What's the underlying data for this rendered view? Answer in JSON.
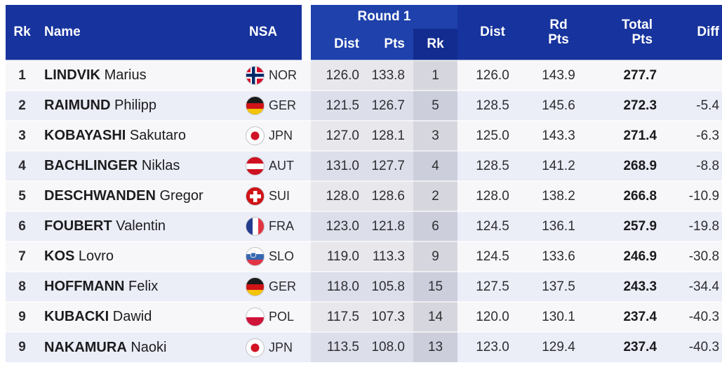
{
  "colors": {
    "header_navy": "#17339d",
    "round1_blue": "#1e41ab",
    "round1_rk_navy": "#122c90",
    "row_odd": "#f7f7f9",
    "row_even": "#ebedf7",
    "band_tint": "rgba(40,45,75,0.075)",
    "band_dark_tint": "rgba(40,45,75,0.155)"
  },
  "table": {
    "header": {
      "rk": "Rk",
      "name": "Name",
      "nsa": "NSA",
      "round1": {
        "title": "Round 1",
        "dist": "Dist",
        "pts": "Pts",
        "rk": "Rk"
      },
      "dist": "Dist",
      "rd_pts": "Rd\nPts",
      "total_pts": "Total\nPts",
      "diff": "Diff"
    },
    "rows": [
      {
        "rank": "1",
        "surname": "LINDVIK",
        "given": "Marius",
        "nsa": "NOR",
        "flag": "nor",
        "r1_dist": "126.0",
        "r1_pts": "133.8",
        "r1_rk": "1",
        "dist": "126.0",
        "rd_pts": "143.9",
        "total": "277.7",
        "diff": ""
      },
      {
        "rank": "2",
        "surname": "RAIMUND",
        "given": "Philipp",
        "nsa": "GER",
        "flag": "ger",
        "r1_dist": "121.5",
        "r1_pts": "126.7",
        "r1_rk": "5",
        "dist": "128.5",
        "rd_pts": "145.6",
        "total": "272.3",
        "diff": "-5.4"
      },
      {
        "rank": "3",
        "surname": "KOBAYASHI",
        "given": "Sakutaro",
        "nsa": "JPN",
        "flag": "jpn",
        "r1_dist": "127.0",
        "r1_pts": "128.1",
        "r1_rk": "3",
        "dist": "125.0",
        "rd_pts": "143.3",
        "total": "271.4",
        "diff": "-6.3"
      },
      {
        "rank": "4",
        "surname": "BACHLINGER",
        "given": "Niklas",
        "nsa": "AUT",
        "flag": "aut",
        "r1_dist": "131.0",
        "r1_pts": "127.7",
        "r1_rk": "4",
        "dist": "128.5",
        "rd_pts": "141.2",
        "total": "268.9",
        "diff": "-8.8"
      },
      {
        "rank": "5",
        "surname": "DESCHWANDEN",
        "given": "Gregor",
        "nsa": "SUI",
        "flag": "sui",
        "r1_dist": "128.0",
        "r1_pts": "128.6",
        "r1_rk": "2",
        "dist": "128.0",
        "rd_pts": "138.2",
        "total": "266.8",
        "diff": "-10.9"
      },
      {
        "rank": "6",
        "surname": "FOUBERT",
        "given": "Valentin",
        "nsa": "FRA",
        "flag": "fra",
        "r1_dist": "123.0",
        "r1_pts": "121.8",
        "r1_rk": "6",
        "dist": "124.5",
        "rd_pts": "136.1",
        "total": "257.9",
        "diff": "-19.8"
      },
      {
        "rank": "7",
        "surname": "KOS",
        "given": "Lovro",
        "nsa": "SLO",
        "flag": "slo",
        "r1_dist": "119.0",
        "r1_pts": "113.3",
        "r1_rk": "9",
        "dist": "124.5",
        "rd_pts": "133.6",
        "total": "246.9",
        "diff": "-30.8"
      },
      {
        "rank": "8",
        "surname": "HOFFMANN",
        "given": "Felix",
        "nsa": "GER",
        "flag": "ger",
        "r1_dist": "118.0",
        "r1_pts": "105.8",
        "r1_rk": "15",
        "dist": "127.5",
        "rd_pts": "137.5",
        "total": "243.3",
        "diff": "-34.4"
      },
      {
        "rank": "9",
        "surname": "KUBACKI",
        "given": "Dawid",
        "nsa": "POL",
        "flag": "pol",
        "r1_dist": "117.5",
        "r1_pts": "107.3",
        "r1_rk": "14",
        "dist": "120.0",
        "rd_pts": "130.1",
        "total": "237.4",
        "diff": "-40.3"
      },
      {
        "rank": "9",
        "surname": "NAKAMURA",
        "given": "Naoki",
        "nsa": "JPN",
        "flag": "jpn",
        "r1_dist": "113.5",
        "r1_pts": "108.0",
        "r1_rk": "13",
        "dist": "123.0",
        "rd_pts": "129.4",
        "total": "237.4",
        "diff": "-40.3"
      }
    ]
  }
}
